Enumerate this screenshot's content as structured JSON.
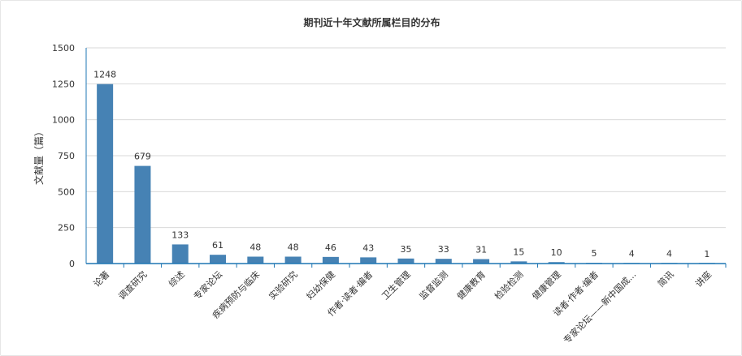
{
  "chart_data": {
    "type": "bar",
    "title": "期刊近十年文献所属栏目的分布",
    "ylabel": "文献量（篇）",
    "xlabel": "",
    "ylim": [
      0,
      1500
    ],
    "yticks": [
      0,
      250,
      500,
      750,
      1000,
      1250,
      1500
    ],
    "grid": true,
    "bar_color": "#4682b4",
    "categories": [
      "论著",
      "调查研究",
      "综述",
      "专家论坛",
      "疾病预防与临床",
      "实验研究",
      "妇幼保健",
      "作者·读者·编者",
      "卫生管理",
      "监督监测",
      "健康教育",
      "检验检测",
      "健康管理",
      "读者·作者·编者",
      "专家论坛——新中国成...",
      "简讯",
      "讲座"
    ],
    "values": [
      1248,
      679,
      133,
      61,
      48,
      48,
      46,
      43,
      35,
      33,
      31,
      15,
      10,
      5,
      4,
      4,
      1
    ]
  }
}
